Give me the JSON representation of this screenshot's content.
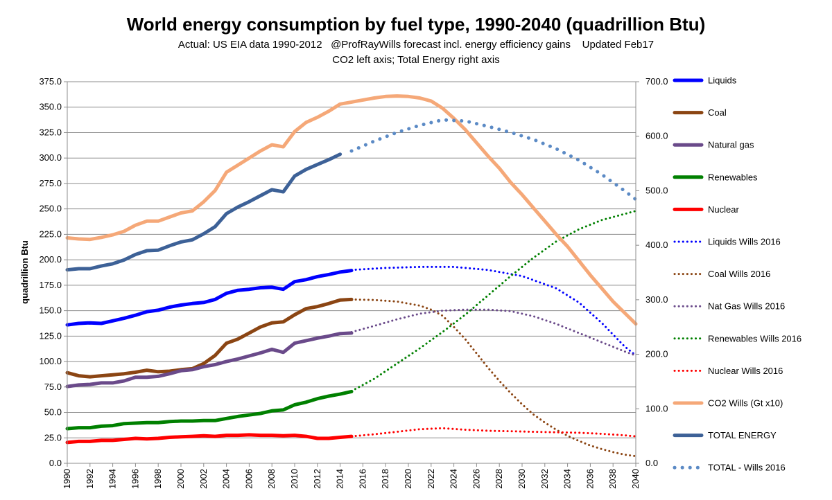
{
  "chart_data": {
    "type": "line",
    "title": "World energy consumption by fuel type, 1990-2040 (quadrillion Btu)",
    "subtitle_line1": "Actual: US EIA data 1990-2012   @ProfRayWills forecast incl. energy efficiency gains    Updated Feb17",
    "subtitle_line2": "CO2 left axis; Total Energy right axis",
    "ylabel": "quadrillion Btu",
    "ylim": [
      0,
      375
    ],
    "y2lim": [
      0,
      700
    ],
    "yticks": [
      "0.0",
      "25.0",
      "50.0",
      "75.0",
      "100.0",
      "125.0",
      "150.0",
      "175.0",
      "200.0",
      "225.0",
      "250.0",
      "275.0",
      "300.0",
      "325.0",
      "350.0",
      "375.0"
    ],
    "y2ticks": [
      "0.0",
      "100.0",
      "200.0",
      "300.0",
      "400.0",
      "500.0",
      "600.0",
      "700.0"
    ],
    "xlim": [
      1990,
      2040
    ],
    "xticks": [
      "1990",
      "1992",
      "1994",
      "1996",
      "1998",
      "2000",
      "2002",
      "2004",
      "2006",
      "2008",
      "2010",
      "2012",
      "2014",
      "2016",
      "2018",
      "2020",
      "2022",
      "2024",
      "2026",
      "2028",
      "2030",
      "2032",
      "2034",
      "2036",
      "2038",
      "2040"
    ],
    "grid": true,
    "legend_position": "right",
    "series": [
      {
        "name": "Liquids",
        "color": "#0000ff",
        "style": "solid",
        "axis": "left",
        "x": [
          1990,
          1991,
          1992,
          1993,
          1994,
          1995,
          1996,
          1997,
          1998,
          1999,
          2000,
          2001,
          2002,
          2003,
          2004,
          2005,
          2006,
          2007,
          2008,
          2009,
          2010,
          2011,
          2012,
          2013,
          2014,
          2015
        ],
        "y": [
          136,
          137.5,
          138,
          137.5,
          140,
          142.5,
          145.5,
          149,
          150.5,
          153.5,
          155.5,
          157,
          158,
          161,
          167,
          170,
          171,
          172.5,
          173,
          171,
          178.5,
          180.5,
          183.5,
          185.5,
          188,
          189.5
        ]
      },
      {
        "name": "Coal",
        "color": "#8b4513",
        "style": "solid",
        "axis": "left",
        "x": [
          1990,
          1991,
          1992,
          1993,
          1994,
          1995,
          1996,
          1997,
          1998,
          1999,
          2000,
          2001,
          2002,
          2003,
          2004,
          2005,
          2006,
          2007,
          2008,
          2009,
          2010,
          2011,
          2012,
          2013,
          2014,
          2015
        ],
        "y": [
          89,
          86,
          85,
          86,
          87,
          88,
          89.5,
          91.5,
          90,
          90.5,
          92,
          93,
          98,
          106,
          118,
          122,
          128,
          134,
          138,
          139,
          146,
          152,
          154,
          157,
          160.5,
          161
        ]
      },
      {
        "name": "Natural gas",
        "color": "#6a4a8a",
        "style": "solid",
        "axis": "left",
        "x": [
          1990,
          1991,
          1992,
          1993,
          1994,
          1995,
          1996,
          1997,
          1998,
          1999,
          2000,
          2001,
          2002,
          2003,
          2004,
          2005,
          2006,
          2007,
          2008,
          2009,
          2010,
          2011,
          2012,
          2013,
          2014,
          2015
        ],
        "y": [
          75.5,
          77,
          77.5,
          79,
          79,
          81,
          84.5,
          84.5,
          85.5,
          88,
          91,
          92,
          95,
          97,
          100,
          102.5,
          105.5,
          108.5,
          112,
          109,
          118,
          120.5,
          123,
          125,
          127.5,
          128
        ]
      },
      {
        "name": "Renewables",
        "color": "#008000",
        "style": "solid",
        "axis": "left",
        "x": [
          1990,
          1991,
          1992,
          1993,
          1994,
          1995,
          1996,
          1997,
          1998,
          1999,
          2000,
          2001,
          2002,
          2003,
          2004,
          2005,
          2006,
          2007,
          2008,
          2009,
          2010,
          2011,
          2012,
          2013,
          2014,
          2015
        ],
        "y": [
          34,
          35,
          35,
          36.5,
          37,
          39,
          39.5,
          40,
          40,
          41,
          41.5,
          41.5,
          42,
          42,
          44,
          46,
          47.5,
          49,
          51.5,
          52.5,
          57.5,
          60,
          63.5,
          66,
          68,
          70.5
        ]
      },
      {
        "name": "Nuclear",
        "color": "#ff0000",
        "style": "solid",
        "axis": "left",
        "x": [
          1990,
          1991,
          1992,
          1993,
          1994,
          1995,
          1996,
          1997,
          1998,
          1999,
          2000,
          2001,
          2002,
          2003,
          2004,
          2005,
          2006,
          2007,
          2008,
          2009,
          2010,
          2011,
          2012,
          2013,
          2014,
          2015
        ],
        "y": [
          20.5,
          21.5,
          21.5,
          22.5,
          22.5,
          23.5,
          24.5,
          24,
          24.5,
          25.5,
          26,
          26.5,
          27,
          26.5,
          27.5,
          27.5,
          28,
          27.5,
          27.5,
          27,
          27.5,
          26.5,
          24.5,
          24.5,
          25.5,
          26.5
        ]
      },
      {
        "name": "Liquids Wills 2016",
        "color": "#0000ff",
        "style": "dotted",
        "axis": "left",
        "x": [
          2015,
          2018,
          2021,
          2024,
          2027,
          2030,
          2033,
          2035,
          2037,
          2039,
          2040
        ],
        "y": [
          190,
          192,
          193,
          193,
          190,
          184,
          172,
          158,
          138,
          115,
          106
        ]
      },
      {
        "name": "Coal Wills 2016",
        "color": "#8b4513",
        "style": "dotted",
        "axis": "left",
        "x": [
          2015,
          2017,
          2019,
          2021,
          2022,
          2023,
          2024,
          2025,
          2026,
          2027,
          2028,
          2029,
          2030,
          2031,
          2032,
          2033,
          2034,
          2035,
          2036,
          2037,
          2038,
          2039,
          2040
        ],
        "y": [
          161,
          160.5,
          159,
          155,
          151,
          145,
          134,
          122,
          108,
          94,
          81,
          69,
          58,
          48,
          40,
          33,
          27,
          22,
          17.5,
          14,
          11,
          8.5,
          7
        ]
      },
      {
        "name": "Nat Gas Wills 2016",
        "color": "#6a4a8a",
        "style": "dotted",
        "axis": "left",
        "x": [
          2015,
          2017,
          2019,
          2021,
          2023,
          2025,
          2027,
          2029,
          2031,
          2033,
          2035,
          2037,
          2039,
          2040
        ],
        "y": [
          129,
          135,
          141.5,
          147,
          150,
          151,
          151,
          149.5,
          144.5,
          137,
          128,
          119,
          110,
          106
        ]
      },
      {
        "name": "Renewables Wills 2016",
        "color": "#008000",
        "style": "dotted",
        "axis": "left",
        "x": [
          2015,
          2017,
          2019,
          2021,
          2023,
          2025,
          2027,
          2029,
          2031,
          2033,
          2035,
          2037,
          2039,
          2040
        ],
        "y": [
          71,
          83,
          98,
          113,
          129,
          146,
          165,
          184,
          202,
          218,
          230,
          239,
          245,
          248
        ]
      },
      {
        "name": "Nuclear Wills 2016",
        "color": "#ff0000",
        "style": "dotted",
        "axis": "left",
        "x": [
          2015,
          2017,
          2019,
          2021,
          2023,
          2025,
          2027,
          2029,
          2031,
          2033,
          2035,
          2037,
          2039,
          2040
        ],
        "y": [
          26.5,
          28.5,
          31,
          33.5,
          34.5,
          33,
          32,
          31.5,
          31,
          30.5,
          30,
          29,
          27.5,
          26.5
        ]
      },
      {
        "name": "CO2 Wills (Gt x10)",
        "color": "#f5a878",
        "style": "solid",
        "axis": "left",
        "x": [
          1990,
          1991,
          1992,
          1993,
          1994,
          1995,
          1996,
          1997,
          1998,
          1999,
          2000,
          2001,
          2002,
          2003,
          2004,
          2005,
          2006,
          2007,
          2008,
          2009,
          2010,
          2011,
          2012,
          2013,
          2014,
          2015,
          2016,
          2017,
          2018,
          2019,
          2020,
          2021,
          2022,
          2023,
          2024,
          2025,
          2026,
          2027,
          2028,
          2029,
          2030,
          2031,
          2032,
          2033,
          2034,
          2035,
          2036,
          2037,
          2038,
          2039,
          2040
        ],
        "y": [
          221.5,
          220.5,
          220,
          222,
          224.5,
          228,
          234,
          238,
          238,
          242,
          246,
          248,
          257,
          268,
          286,
          293,
          300,
          307,
          313,
          311,
          326,
          335,
          340,
          346,
          353,
          355,
          357,
          359,
          360.5,
          361,
          360.5,
          359,
          356,
          349,
          339,
          328,
          315,
          302,
          290,
          276,
          264,
          251,
          238,
          225,
          213,
          199,
          185,
          172,
          159,
          148,
          137
        ]
      },
      {
        "name": "TOTAL ENERGY",
        "color": "#3d6197",
        "style": "solid",
        "axis": "right",
        "x": [
          1990,
          1991,
          1992,
          1993,
          1994,
          1995,
          1996,
          1997,
          1998,
          1999,
          2000,
          2001,
          2002,
          2003,
          2004,
          2005,
          2006,
          2007,
          2008,
          2009,
          2010,
          2011,
          2012,
          2013,
          2014
        ],
        "y": [
          355,
          357,
          357,
          362,
          366,
          373,
          383,
          390,
          391,
          399,
          406,
          410,
          421,
          434,
          458,
          470,
          480,
          491,
          502,
          498,
          527,
          539,
          548,
          557,
          567
        ]
      },
      {
        "name": "TOTAL - Wills 2016",
        "color": "#5b8ac5",
        "style": "dotted-big",
        "axis": "right",
        "x": [
          2015,
          2017,
          2019,
          2021,
          2023,
          2025,
          2027,
          2029,
          2031,
          2033,
          2035,
          2037,
          2039,
          2040
        ],
        "y": [
          573,
          591,
          607,
          620,
          630,
          628,
          618,
          607,
          594,
          577,
          556,
          530,
          500,
          484
        ]
      }
    ]
  }
}
